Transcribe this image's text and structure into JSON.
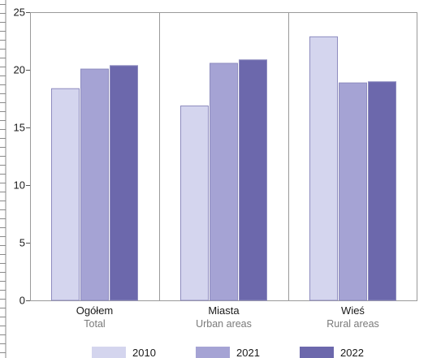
{
  "chart_data": {
    "type": "bar",
    "title": "",
    "xlabel": "",
    "ylabel": "",
    "ylim": [
      0,
      25
    ],
    "yticks": [
      0,
      5,
      10,
      15,
      20,
      25
    ],
    "grid": "vertical separators between categories",
    "legend_position": "bottom",
    "categories": [
      {
        "label": "Ogółem",
        "sublabel": "Total"
      },
      {
        "label": "Miasta",
        "sublabel": "Urban areas"
      },
      {
        "label": "Wieś",
        "sublabel": "Rural areas"
      }
    ],
    "series": [
      {
        "name": "2010",
        "color": "#d4d5ee",
        "values": [
          18.4,
          16.9,
          22.9
        ]
      },
      {
        "name": "2021",
        "color": "#a5a3d4",
        "values": [
          20.1,
          20.6,
          18.9
        ]
      },
      {
        "name": "2022",
        "color": "#6c68ac",
        "values": [
          20.4,
          20.9,
          19.0
        ]
      }
    ]
  }
}
